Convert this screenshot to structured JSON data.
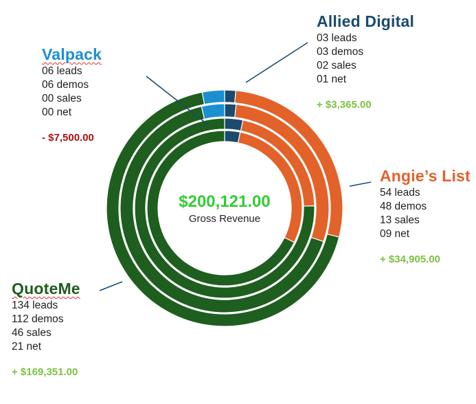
{
  "chart_data": {
    "type": "donut",
    "center": {
      "value": "$200,121.00",
      "label": "Gross Revenue"
    },
    "rings": [
      "leads",
      "demos",
      "sales",
      "net"
    ],
    "series": [
      {
        "name": "Allied Digital",
        "color": "#1a4b6e",
        "name_color": "#1a4b6e",
        "wavy": false,
        "stats": [
          "03 leads",
          "03 demos",
          "02 sales",
          "01 net"
        ],
        "values": [
          3,
          3,
          2,
          1
        ],
        "revenue": "+ $3,365.00",
        "revenue_color": "#7cc142"
      },
      {
        "name": "Angie’s List",
        "color": "#e2622a",
        "name_color": "#e2622a",
        "wavy": false,
        "stats": [
          "54 leads",
          "48 demos",
          "13 sales",
          "09 net"
        ],
        "values": [
          54,
          48,
          13,
          9
        ],
        "revenue": "+ $34,905.00",
        "revenue_color": "#7cc142"
      },
      {
        "name": "QuoteMe",
        "color": "#1e5e1e",
        "name_color": "#1e5e1e",
        "wavy": true,
        "stats": [
          "134 leads",
          "112 demos",
          "46 sales",
          "21 net"
        ],
        "values": [
          134,
          112,
          46,
          21
        ],
        "revenue": "+ $169,351.00",
        "revenue_color": "#7cc142"
      },
      {
        "name": "Valpack",
        "color": "#1c8fd0",
        "name_color": "#1c8fd0",
        "wavy": true,
        "stats": [
          "06 leads",
          "06 demos",
          "00 sales",
          "00 net"
        ],
        "values": [
          6,
          6,
          0,
          0
        ],
        "revenue": "- $7,500.00",
        "revenue_color": "#b01010"
      }
    ]
  }
}
